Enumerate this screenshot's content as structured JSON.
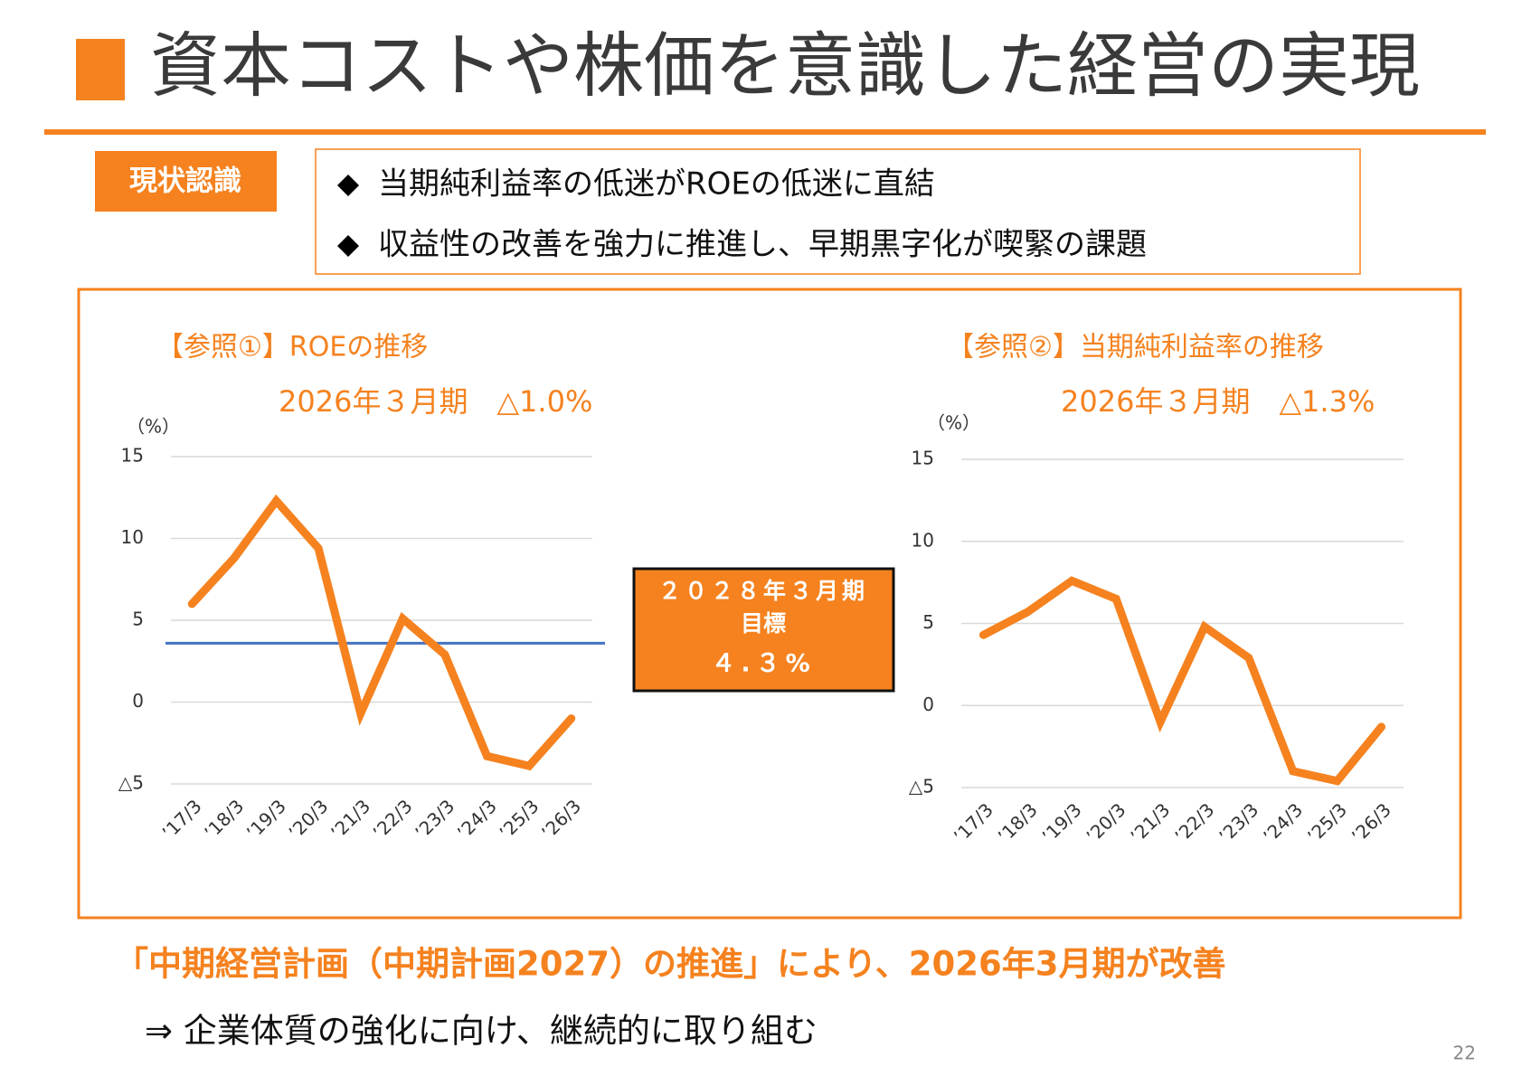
{
  "title": "資本コストや株価を意識した経営の実現",
  "status_label": "現状認識",
  "bullets": [
    "当期純利益率の低迷がROEの低迷に直結",
    "収益性の改善を強力に推進し、早期黒字化が喫緊の課題"
  ],
  "chart_data": [
    {
      "type": "line",
      "title": "【参照①】ROEの推移",
      "annotation": "2026年３月期　△1.0%",
      "y_unit": "（%）",
      "categories": [
        "’17/3",
        "’18/3",
        "’19/3",
        "’20/3",
        "’21/3",
        "’22/3",
        "’23/3",
        "’24/3",
        "’25/3",
        "’26/3"
      ],
      "series": [
        {
          "color": "#f5821f",
          "values": [
            6.0,
            8.8,
            12.3,
            9.4,
            -0.7,
            5.1,
            2.9,
            -3.3,
            -3.9,
            -1.0
          ]
        }
      ],
      "target_line": {
        "value": 3.6,
        "color": "#4472c4"
      },
      "ylim": [
        -5,
        15
      ],
      "yticks": [
        {
          "value": -5,
          "label": "△5"
        },
        0,
        5,
        10,
        15
      ],
      "grid": true
    },
    {
      "type": "line",
      "title": "【参照②】当期純利益率の推移",
      "annotation": "2026年３月期　△1.3%",
      "y_unit": "（%）",
      "categories": [
        "’17/3",
        "’18/3",
        "’19/3",
        "’20/3",
        "’21/3",
        "’22/3",
        "’23/3",
        "’24/3",
        "’25/3",
        "’26/3"
      ],
      "series": [
        {
          "color": "#f5821f",
          "values": [
            4.3,
            5.7,
            7.6,
            6.5,
            -1.0,
            4.8,
            2.9,
            -4.0,
            -4.6,
            -1.3
          ]
        }
      ],
      "ylim": [
        -5,
        15
      ],
      "yticks": [
        {
          "value": -5,
          "label": "△5"
        },
        0,
        5,
        10,
        15
      ],
      "grid": true
    }
  ],
  "target_box": [
    "２０２８年３月期",
    "目標",
    "４.３%"
  ],
  "conclusion": "「中期経営計画（中期計画2027）の推進」により、2026年3月期が改善",
  "sub_conclusion": "⇒ 企業体質の強化に向け、継続的に取り組む",
  "page_number": "22"
}
